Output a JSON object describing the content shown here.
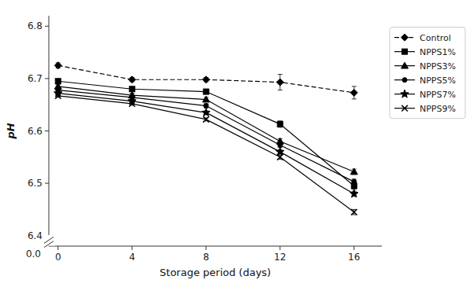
{
  "chart_data": {
    "type": "line",
    "x": [
      0,
      4,
      8,
      12,
      16
    ],
    "xlabel": "Storage period (days)",
    "ylabel": "pH",
    "xlim": [
      -0.5,
      17.5
    ],
    "ylim": [
      6.38,
      6.82
    ],
    "xticks": [
      0,
      4,
      8,
      12,
      16
    ],
    "yticks": [
      6.4,
      6.5,
      6.6,
      6.7,
      6.8
    ],
    "annotations": [
      "0.0"
    ],
    "grid": false,
    "legend": "right",
    "series": [
      {
        "name": "Control",
        "color": "black",
        "marker": "diamond",
        "line_style": "dashed",
        "values": [
          6.725,
          6.698,
          6.698,
          6.693,
          6.673
        ],
        "errors": [
          0.005,
          0.004,
          0.004,
          0.015,
          0.012
        ]
      },
      {
        "name": "NPPS1%",
        "color": "black",
        "marker": "square",
        "line_style": "solid",
        "values": [
          6.695,
          6.68,
          6.675,
          6.613,
          6.495
        ],
        "errors": [
          0.004,
          0.004,
          0.004,
          0.006,
          0.006
        ]
      },
      {
        "name": "NPPS3%",
        "color": "black",
        "marker": "triangle",
        "line_style": "solid",
        "values": [
          6.685,
          6.668,
          6.66,
          6.58,
          6.522
        ],
        "errors": [
          0.004,
          0.004,
          0.004,
          0.005,
          0.005
        ]
      },
      {
        "name": "NPPS5%",
        "color": "black",
        "marker": "circle",
        "line_style": "solid",
        "values": [
          6.678,
          6.664,
          6.648,
          6.573,
          6.503
        ],
        "errors": [
          0.003,
          0.004,
          0.004,
          0.005,
          0.005
        ]
      },
      {
        "name": "NPPS7%",
        "color": "black",
        "marker": "star",
        "line_style": "solid",
        "values": [
          6.672,
          6.657,
          6.635,
          6.56,
          6.48
        ],
        "errors": [
          0.003,
          0.003,
          0.003,
          0.004,
          0.005
        ]
      },
      {
        "name": "NPPS9%",
        "color": "black",
        "marker": "x",
        "line_style": "solid",
        "values": [
          6.667,
          6.652,
          6.622,
          6.55,
          6.445
        ],
        "errors": [
          0.003,
          0.003,
          0.003,
          0.004,
          0.005
        ]
      }
    ]
  }
}
